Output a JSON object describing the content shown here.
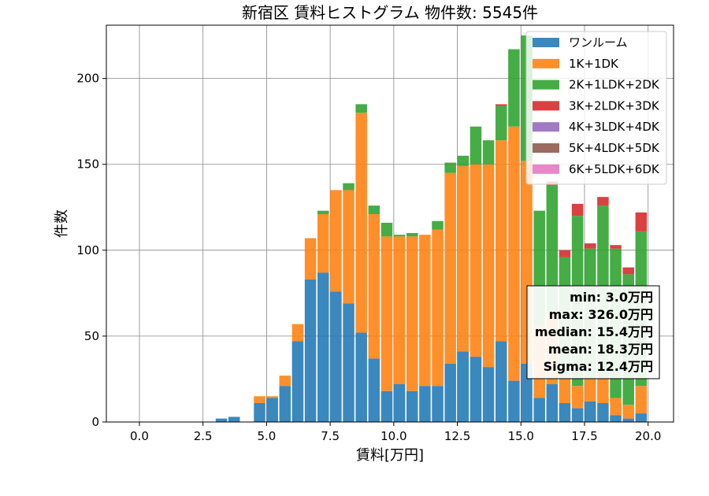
{
  "chart_data": {
    "type": "bar",
    "title": "新宿区 賃料ヒストグラム 物件数: 5545件",
    "xlabel": "賃料[万円]",
    "ylabel": "件数",
    "xlim": [
      -1.3,
      21.0
    ],
    "ylim": [
      0,
      231
    ],
    "x_ticks": [
      "0.0",
      "2.5",
      "5.0",
      "7.5",
      "10.0",
      "12.5",
      "15.0",
      "17.5",
      "20.0"
    ],
    "y_ticks": [
      "0",
      "50",
      "100",
      "150",
      "200"
    ],
    "grid": true,
    "legend_position": "top-right",
    "bin_width": 0.5,
    "bin_starts": [
      3.0,
      3.5,
      4.5,
      5.0,
      5.5,
      6.0,
      6.5,
      7.0,
      7.5,
      8.0,
      8.5,
      9.0,
      9.5,
      10.0,
      10.5,
      11.0,
      11.5,
      12.0,
      12.5,
      13.0,
      13.5,
      14.0,
      14.5,
      15.0,
      15.5,
      16.0,
      16.5,
      17.0,
      17.5,
      18.0,
      18.5,
      19.0,
      19.5
    ],
    "series": [
      {
        "name": "ワンルーム",
        "color": "#1f77b4",
        "values": [
          2,
          3,
          11,
          14,
          21,
          47,
          83,
          87,
          76,
          69,
          52,
          37,
          18,
          22,
          18,
          21,
          21,
          34,
          41,
          38,
          32,
          47,
          24,
          34,
          14,
          22,
          11,
          8,
          12,
          11,
          4,
          2,
          5
        ]
      },
      {
        "name": "1K+1DK",
        "color": "#ff7f0e",
        "values": [
          0,
          0,
          4,
          1,
          6,
          10,
          24,
          34,
          59,
          66,
          128,
          84,
          90,
          86,
          90,
          88,
          91,
          111,
          108,
          112,
          118,
          117,
          148,
          118,
          42,
          42,
          15,
          13,
          13,
          15,
          10,
          8,
          16
        ]
      },
      {
        "name": "2K+1LDK+2DK",
        "color": "#2ca02c",
        "values": [
          0,
          0,
          0,
          0,
          0,
          0,
          0,
          2,
          0,
          4,
          5,
          5,
          8,
          1,
          2,
          0,
          5,
          6,
          6,
          22,
          14,
          20,
          45,
          73,
          67,
          74,
          70,
          99,
          76,
          100,
          87,
          76,
          90
        ]
      },
      {
        "name": "3K+2LDK+3DK",
        "color": "#d62728",
        "values": [
          0,
          0,
          0,
          0,
          0,
          0,
          0,
          0,
          0,
          0,
          0,
          0,
          0,
          0,
          0,
          0,
          0,
          0,
          0,
          0,
          0,
          1,
          0,
          0,
          0,
          2,
          4,
          7,
          3,
          5,
          2,
          4,
          11
        ]
      },
      {
        "name": "4K+3LDK+4DK",
        "color": "#9467bd",
        "values": [
          0,
          0,
          0,
          0,
          0,
          0,
          0,
          0,
          0,
          0,
          0,
          0,
          0,
          0,
          0,
          0,
          0,
          0,
          0,
          0,
          0,
          0,
          0,
          0,
          0,
          0,
          0,
          0,
          0,
          0,
          0,
          0,
          0
        ]
      },
      {
        "name": "5K+4LDK+5DK",
        "color": "#8c564b",
        "values": [
          0,
          0,
          0,
          0,
          0,
          0,
          0,
          0,
          0,
          0,
          0,
          0,
          0,
          0,
          0,
          0,
          0,
          0,
          0,
          0,
          0,
          0,
          0,
          0,
          0,
          0,
          0,
          0,
          0,
          0,
          0,
          0,
          0
        ]
      },
      {
        "name": "6K+5LDK+6DK",
        "color": "#e377c2",
        "values": [
          0,
          0,
          0,
          0,
          0,
          0,
          0,
          0,
          0,
          0,
          0,
          0,
          0,
          0,
          0,
          0,
          0,
          0,
          0,
          0,
          0,
          0,
          0,
          0,
          0,
          0,
          0,
          0,
          0,
          0,
          0,
          0,
          0
        ]
      }
    ],
    "stats": [
      "min: 3.0万円",
      "max: 326.0万円",
      "median: 15.4万円",
      "mean: 18.3万円",
      "Sigma: 12.4万円"
    ]
  }
}
